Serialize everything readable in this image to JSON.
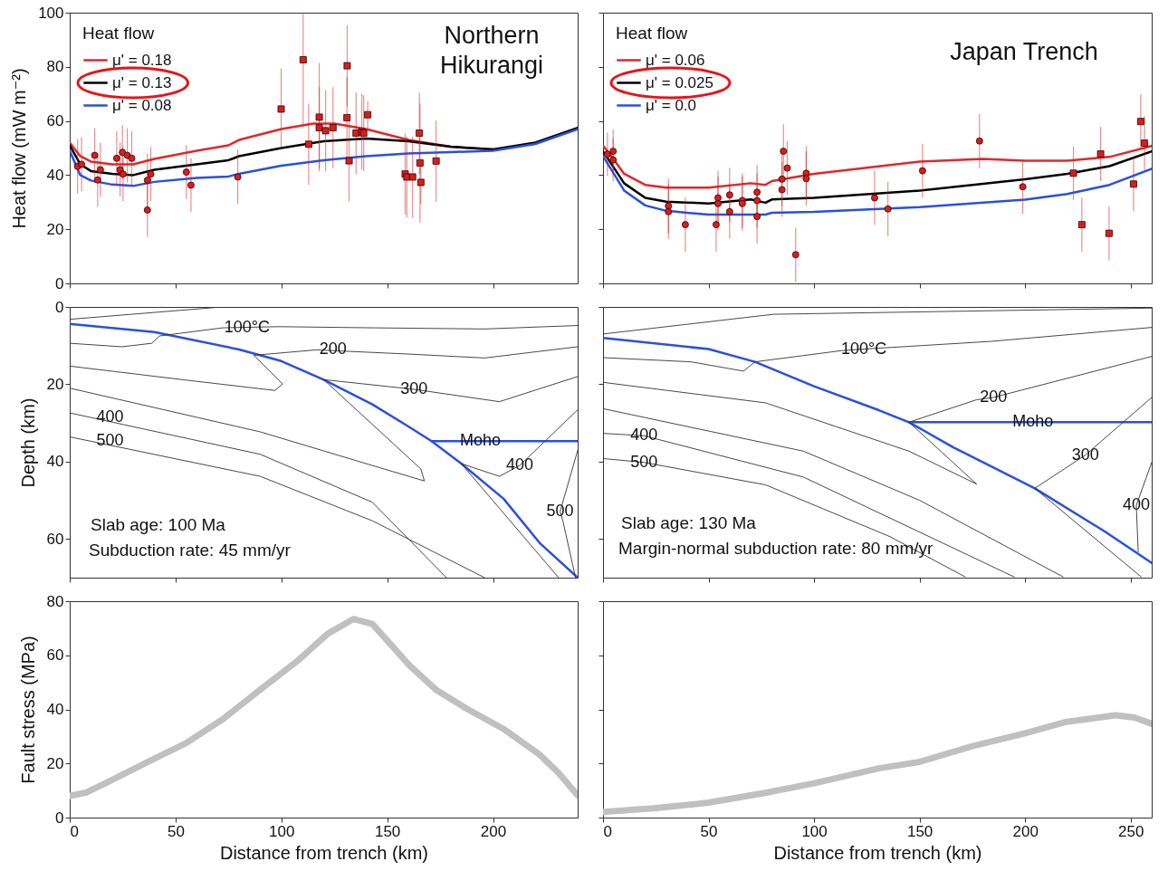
{
  "chart_data": [
    {
      "type": "line",
      "title": "Northern Hikurangi",
      "ylabel": "Heat flow (mW m⁻²)",
      "xlim": [
        0,
        240
      ],
      "ylim": [
        0,
        100
      ],
      "xticks": [
        0,
        50,
        100,
        150,
        200
      ],
      "yticks": [
        0,
        20,
        40,
        60,
        80,
        100
      ],
      "tick_labels": "y",
      "legend": "top left",
      "legend_title": "Heat flow",
      "marker": "none",
      "series": [
        {
          "name": "μ' = 0.18",
          "color": "#e3262b",
          "x": [
            0,
            5,
            10,
            20,
            30,
            40,
            60,
            75,
            80,
            100,
            115,
            125,
            140,
            160,
            180,
            200
          ],
          "values": [
            52,
            47,
            45,
            44,
            44,
            46,
            49,
            51,
            53,
            57,
            59,
            59,
            57,
            53,
            50.5,
            49.5
          ]
        },
        {
          "name": "μ' = 0.13",
          "color": "#000000",
          "x": [
            0,
            5,
            10,
            20,
            30,
            40,
            60,
            75,
            80,
            100,
            120,
            140,
            160,
            180,
            200,
            220,
            240
          ],
          "values": [
            51,
            44,
            41.5,
            40.5,
            40,
            42,
            44,
            45.5,
            47,
            50,
            52.5,
            53.5,
            52.5,
            50.5,
            49.5,
            52,
            57.5
          ]
        },
        {
          "name": "μ' = 0.08",
          "color": "#2a4fe0",
          "x": [
            0,
            5,
            10,
            20,
            30,
            40,
            60,
            75,
            80,
            100,
            120,
            140,
            160,
            180,
            200,
            220,
            240
          ],
          "values": [
            49,
            40,
            38,
            36.5,
            36,
            37.5,
            39,
            39.5,
            40.5,
            43.5,
            45.5,
            47,
            48,
            48.5,
            49,
            51.5,
            57
          ]
        },
        {
          "type": "scatter",
          "marker": "circle",
          "color": "#d41f1f",
          "x": [
            3.7,
            5.6,
            11.8,
            13.2,
            14.5,
            22.2,
            23.8,
            24.9,
            25.2,
            27.2,
            29.3,
            36.7,
            36.7,
            38.3,
            55.1,
            57.3,
            79.4
          ],
          "values": [
            43.2,
            44,
            47.3,
            38.2,
            42,
            46.2,
            42,
            48.4,
            40.4,
            47.3,
            46.2,
            38.1,
            27.1,
            40.4,
            41.1,
            36.3,
            39.3
          ],
          "errors": [
            10,
            10,
            10,
            10,
            10,
            10,
            10,
            10,
            10,
            10,
            10,
            10,
            10,
            10,
            10,
            10,
            10
          ]
        },
        {
          "type": "scatter",
          "marker": "square",
          "color": "#d41f1f",
          "x": [
            99.9,
            110.3,
            112.9,
            117.9,
            117.9,
            120.9,
            124.4,
            131.1,
            131,
            132,
            135.3,
            138,
            138.9,
            140.8,
            158.5,
            159.3,
            162,
            165.2,
            165.5,
            165.9,
            173.1
          ],
          "values": [
            64.4,
            82.6,
            51.4,
            61.4,
            57.5,
            56.4,
            57.5,
            80.4,
            61.2,
            45.3,
            55.5,
            56,
            55.5,
            62.3,
            40.4,
            39.3,
            39.3,
            55.5,
            44.5,
            37.3,
            45.2
          ],
          "errors": [
            15,
            [
              58,
              100
            ],
            15,
            20,
            15,
            15,
            15,
            15,
            15,
            15,
            15,
            14,
            14,
            5,
            15,
            15,
            15,
            15,
            22,
            8,
            15
          ]
        }
      ]
    },
    {
      "type": "line",
      "title": "Japan Trench",
      "xlim": [
        0,
        260
      ],
      "ylim": [
        0,
        100
      ],
      "xticks": [
        0,
        50,
        100,
        150,
        200,
        250
      ],
      "yticks": [
        0,
        20,
        40,
        60,
        80,
        100
      ],
      "tick_labels": false,
      "legend": "top left",
      "legend_title": "Heat flow",
      "marker": "none",
      "series": [
        {
          "name": "μ' = 0.06",
          "color": "#e3262b",
          "x": [
            0,
            3,
            10,
            20,
            30,
            50,
            70,
            77,
            80,
            100,
            150,
            180,
            200,
            220,
            240,
            260
          ],
          "values": [
            50.8,
            48,
            40.5,
            36.4,
            35.4,
            35.4,
            37,
            36.4,
            37.8,
            40.5,
            45,
            46,
            45.3,
            45.3,
            46.7,
            50.8
          ]
        },
        {
          "name": "μ' = 0.025",
          "color": "#000000",
          "x": [
            0,
            10,
            20,
            30,
            50,
            70,
            77,
            80,
            100,
            150,
            200,
            220,
            240,
            260
          ],
          "values": [
            48.8,
            37,
            31.6,
            30.2,
            29.5,
            31,
            29.8,
            31,
            31.6,
            34.3,
            38.5,
            40.5,
            43.3,
            48.8
          ]
        },
        {
          "name": "μ' = 0.0",
          "color": "#2a4fe0",
          "x": [
            0,
            10,
            20,
            30,
            50,
            77,
            80,
            100,
            150,
            200,
            220,
            240,
            260
          ],
          "values": [
            47,
            34.3,
            28.8,
            26.8,
            25.4,
            25.4,
            26.1,
            26.4,
            28.2,
            30.9,
            33,
            36.4,
            42.3
          ]
        },
        {
          "type": "scatter",
          "marker": "circle",
          "color": "#d41f1f",
          "x": [
            2.1,
            4.8,
            4.8,
            31,
            31,
            39,
            54.5,
            54.5,
            53.6,
            60,
            60,
            66,
            66,
            73,
            73,
            73,
            84.8,
            84.8,
            85.5,
            87.3,
            91.3,
            96.3,
            96.3,
            128.7,
            135,
            151.4,
            178.4,
            198.9
          ],
          "values": [
            47.7,
            48.8,
            45.6,
            28.6,
            26.5,
            21.7,
            31.6,
            29.5,
            21.7,
            32.7,
            26.5,
            30.6,
            29.5,
            33.7,
            30.6,
            24.7,
            38.5,
            34.6,
            48.8,
            42.6,
            10.6,
            40.7,
            38.7,
            31.6,
            27.5,
            41.6,
            52.6,
            35.7
          ],
          "errors": [
            8,
            8,
            8,
            10,
            10,
            10,
            10,
            10,
            10,
            10,
            10,
            10,
            10,
            10,
            10,
            10,
            10,
            10,
            10,
            10,
            10,
            10,
            10,
            10,
            10,
            10,
            10,
            10
          ]
        },
        {
          "type": "scatter",
          "marker": "square",
          "color": "#d41f1f",
          "x": [
            222.9,
            226.9,
            235.8,
            239.8,
            251.4,
            254.8,
            256.6
          ],
          "values": [
            40.7,
            21.7,
            47.8,
            18.5,
            36.7,
            59.8,
            51.8
          ],
          "errors": [
            10,
            10,
            10,
            10,
            10,
            10,
            10
          ]
        }
      ]
    },
    {
      "type": "line",
      "ylabel": "Depth (km)",
      "xlim": [
        0,
        240
      ],
      "ylim": [
        70,
        0
      ],
      "xticks": [
        0,
        50,
        100,
        150,
        200
      ],
      "yticks": [
        0,
        20,
        40,
        60
      ],
      "tick_labels": "y",
      "marker": "none",
      "series": [
        {
          "color": "#2a4fe0",
          "x": [
            0,
            40,
            80,
            100,
            120,
            143,
            160,
            171,
            185,
            205,
            222,
            240
          ],
          "values": [
            4.4,
            6.5,
            11,
            14,
            18.8,
            25.2,
            30.9,
            34.7,
            40.5,
            49.6,
            61,
            70
          ]
        },
        {
          "color": "#2a4fe0",
          "x": [
            171,
            240
          ],
          "values": [
            34.7,
            34.7
          ]
        },
        {
          "color": "#333333",
          "x": [
            0,
            72
          ],
          "values": [
            3.2,
            0
          ]
        },
        {
          "color": "#333333",
          "x": [
            0,
            24.7,
            38.8,
            42.4,
            72.3,
            98.8,
            143,
            196,
            240
          ],
          "values": [
            9.4,
            10.3,
            9.4,
            7.5,
            5.4,
            5.1,
            5.4,
            5.7,
            4.8
          ]
        },
        {
          "color": "#333333",
          "x": [
            0,
            54.7,
            97,
            100.6,
            87,
            116.5,
            160.6,
            196,
            240
          ],
          "values": [
            15.3,
            18.9,
            21.6,
            19.9,
            12.5,
            11.1,
            12.2,
            13.2,
            10.3
          ]
        },
        {
          "color": "#333333",
          "x": [
            0,
            90,
            143,
            167.6,
            165.9,
            120,
            162.7,
            203,
            240
          ],
          "values": [
            21,
            32.3,
            41,
            45,
            41.9,
            18.8,
            21.3,
            24.5,
            18
          ]
        },
        {
          "color": "#333333",
          "x": [
            0,
            90,
            143,
            178
          ],
          "values": [
            27.4,
            38.1,
            50.5,
            70
          ]
        },
        {
          "color": "#333333",
          "x": [
            185,
            203,
            212.6,
            240
          ],
          "values": [
            40.5,
            43.8,
            41,
            26.6
          ]
        },
        {
          "color": "#333333",
          "x": [
            0,
            90,
            143,
            196
          ],
          "values": [
            33.6,
            43.8,
            55.3,
            70
          ]
        },
        {
          "color": "#333333",
          "x": [
            239,
            233,
            231.7,
            240
          ],
          "values": [
            70,
            55.3,
            52.9,
            37.1
          ]
        },
        {
          "color": "#333333",
          "x": [
            185,
            231
          ],
          "values": [
            40.5,
            70
          ]
        }
      ],
      "annotations": [
        {
          "text": "100°C",
          "x": 83.8,
          "y": 5.4
        },
        {
          "text": "200",
          "x": 124.4,
          "y": 11.1
        },
        {
          "text": "300",
          "x": 162.7,
          "y": 21.3
        },
        {
          "text": "400",
          "x": 19,
          "y": 28.5
        },
        {
          "text": "500",
          "x": 19,
          "y": 34.7
        },
        {
          "text": "Moho",
          "x": 194,
          "y": 34.7
        },
        {
          "text": "400",
          "x": 212.6,
          "y": 41
        },
        {
          "text": "500",
          "x": 231.7,
          "y": 52.9
        },
        "Slab age: 100 Ma",
        "Subduction rate: 45 mm/yr"
      ]
    },
    {
      "type": "line",
      "xlim": [
        0,
        260
      ],
      "ylim": [
        70,
        0
      ],
      "xticks": [
        0,
        50,
        100,
        150,
        200,
        250
      ],
      "yticks": [
        0,
        20,
        40,
        60
      ],
      "tick_labels": false,
      "marker": "none",
      "series": [
        {
          "color": "#2a4fe0",
          "x": [
            0,
            50,
            72,
            100,
            130.7,
            145,
            166,
            204.6,
            237.6,
            260
          ],
          "values": [
            8,
            10.9,
            14.2,
            20.5,
            26.7,
            29.8,
            36.3,
            46.9,
            58,
            66.2
          ]
        },
        {
          "color": "#2a4fe0",
          "x": [
            145,
            260
          ],
          "values": [
            29.8,
            29.8
          ]
        },
        {
          "color": "#333333",
          "x": [
            0,
            80.8,
            260
          ],
          "values": [
            7,
            1.9,
            0.3
          ]
        },
        {
          "color": "#333333",
          "x": [
            0,
            41.7,
            66.6,
            72,
            113,
            123.6,
            184,
            260
          ],
          "values": [
            13.1,
            14.2,
            16.6,
            14.2,
            11.3,
            10.9,
            8.9,
            5.3
          ]
        },
        {
          "color": "#333333",
          "x": [
            0,
            77,
            145,
            177,
            145,
            177,
            185,
            260
          ],
          "values": [
            19.5,
            24.8,
            37.3,
            45.8,
            29.8,
            24,
            23.4,
            12.8
          ]
        },
        {
          "color": "#333333",
          "x": [
            0,
            95,
            150,
            218
          ],
          "values": [
            26.3,
            37.3,
            50,
            69.8
          ]
        },
        {
          "color": "#333333",
          "x": [
            204.6,
            228.6,
            260
          ],
          "values": [
            46.9,
            38.3,
            23.4
          ]
        },
        {
          "color": "#333333",
          "x": [
            0,
            19.4,
            95,
            194.8
          ],
          "values": [
            32.7,
            33.3,
            44,
            69.8
          ]
        },
        {
          "color": "#333333",
          "x": [
            253.6,
            252.7,
            260
          ],
          "values": [
            63.3,
            51.3,
            40.2
          ]
        },
        {
          "color": "#333333",
          "x": [
            0,
            19.4,
            77,
            136,
            171.6
          ],
          "values": [
            39.2,
            40.2,
            46,
            59.4,
            69.8
          ]
        },
        {
          "color": "#333333",
          "x": [
            204.6,
            255
          ],
          "values": [
            46.9,
            69.8
          ]
        }
      ],
      "annotations": [
        {
          "text": "100°C",
          "x": 123.6,
          "y": 10.9
        },
        {
          "text": "200",
          "x": 185,
          "y": 23.4
        },
        {
          "text": "Moho",
          "x": 203.7,
          "y": 29.8
        },
        {
          "text": "300",
          "x": 228.6,
          "y": 38.3
        },
        {
          "text": "400",
          "x": 19.4,
          "y": 33.3
        },
        {
          "text": "500",
          "x": 19.4,
          "y": 40.2
        },
        {
          "text": "400",
          "x": 252.7,
          "y": 51.3
        },
        "Slab age: 130 Ma",
        "Margin-normal subduction rate: 80 mm/yr"
      ]
    },
    {
      "type": "line",
      "xlabel": "Distance from trench (km)",
      "ylabel": "Fault stress (MPa)",
      "xlim": [
        0,
        240
      ],
      "ylim": [
        0,
        80
      ],
      "xticks": [
        0,
        50,
        100,
        150,
        200
      ],
      "yticks": [
        0,
        20,
        40,
        60,
        80
      ],
      "marker": "none",
      "series": [
        {
          "color": "#c0c0c0",
          "x": [
            0,
            8,
            19.4,
            37,
            54.7,
            72.4,
            90,
            107.6,
            121.8,
            134,
            143,
            160.6,
            173,
            187,
            204.7,
            222,
            231,
            240
          ],
          "values": [
            8,
            9.3,
            13.7,
            20.6,
            27.4,
            36.4,
            47.3,
            57.9,
            67.9,
            73.4,
            71.6,
            56.2,
            47.3,
            40.5,
            32.9,
            23.3,
            16.5,
            8.2
          ]
        }
      ]
    },
    {
      "type": "line",
      "xlabel": "Distance from trench (km)",
      "xlim": [
        0,
        260
      ],
      "ylim": [
        0,
        80
      ],
      "xticks": [
        0,
        50,
        100,
        150,
        200,
        250
      ],
      "yticks": [
        0,
        20,
        40,
        60,
        80
      ],
      "tick_labels": "x",
      "marker": "none",
      "series": [
        {
          "color": "#c0c0c0",
          "x": [
            0,
            23.9,
            50,
            77.3,
            100,
            130.7,
            150,
            175,
            200,
            219.7,
            242.9,
            251.8,
            260
          ],
          "values": [
            2.1,
            3.4,
            5.5,
            9.2,
            12.7,
            18.2,
            20.6,
            26.4,
            31.2,
            35.4,
            37.8,
            37,
            34.7
          ]
        }
      ]
    }
  ]
}
